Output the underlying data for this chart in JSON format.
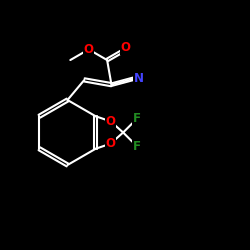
{
  "background": "#000000",
  "bond_color": "#ffffff",
  "bond_lw": 1.5,
  "atom_colors": {
    "O": "#ff0000",
    "N": "#4444ff",
    "F": "#228B22",
    "C": "#ffffff"
  },
  "font_size": 8.5,
  "xlim": [
    0,
    10
  ],
  "ylim": [
    0,
    10
  ]
}
